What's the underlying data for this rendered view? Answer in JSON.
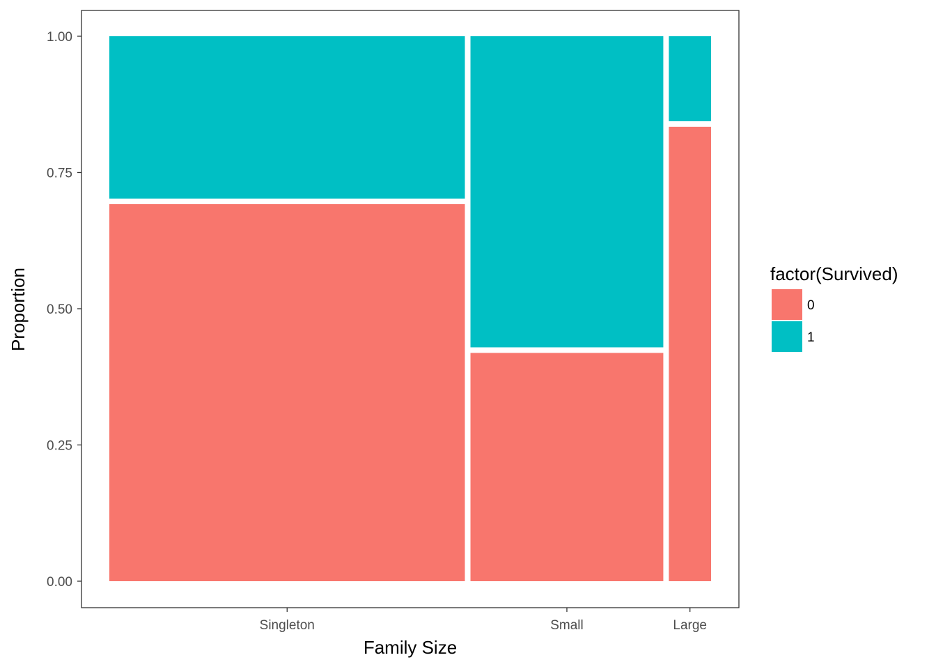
{
  "chart_data": {
    "type": "mosaic",
    "xlabel": "Family Size",
    "ylabel": "Proportion",
    "categories": [
      "Singleton",
      "Small",
      "Large"
    ],
    "category_widths": [
      0.59,
      0.32,
      0.07
    ],
    "y_ticks": [
      "0.00",
      "0.25",
      "0.50",
      "0.75",
      "1.00"
    ],
    "ylim": [
      0,
      1
    ],
    "fill_variable": "factor(Survived)",
    "series": [
      {
        "name": "0",
        "color": "#F8766D",
        "values": [
          0.697,
          0.424,
          0.839
        ]
      },
      {
        "name": "1",
        "color": "#00BFC4",
        "values": [
          0.303,
          0.576,
          0.161
        ]
      }
    ],
    "legend": {
      "title": "factor(Survived)",
      "placement": "right",
      "items": [
        {
          "label": "0",
          "color": "#F8766D"
        },
        {
          "label": "1",
          "color": "#00BFC4"
        }
      ]
    },
    "grid": false,
    "panel_border": true
  }
}
